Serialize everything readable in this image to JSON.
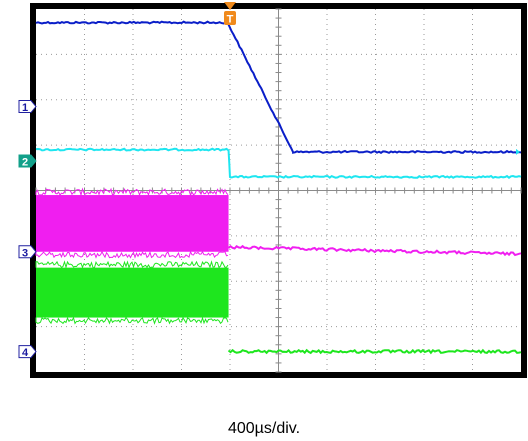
{
  "chart_data": {
    "type": "line",
    "title": "",
    "xlabel": "400µs/div.",
    "x_scale_us_per_div": 400,
    "divisions": {
      "x": 10,
      "y": 8
    },
    "x_range_div": [
      0,
      10
    ],
    "y_range_div": [
      0,
      8
    ],
    "grid": true,
    "trigger": {
      "label": "T",
      "position_div": 4.0,
      "color": "#f08a1c"
    },
    "series": [
      {
        "marker": "1",
        "color": "#0a1ec8",
        "marker_level_div": 5.85,
        "points_div": [
          [
            0,
            7.7
          ],
          [
            3.95,
            7.7
          ],
          [
            5.3,
            4.85
          ],
          [
            10,
            4.85
          ]
        ],
        "noise": "low"
      },
      {
        "marker": "2",
        "color": "#1ee6f0",
        "marker_level_div": 4.65,
        "points_div": [
          [
            0,
            4.9
          ],
          [
            3.97,
            4.9
          ],
          [
            4.0,
            4.3
          ],
          [
            10,
            4.3
          ]
        ],
        "noise": "low"
      },
      {
        "marker": "3",
        "color": "#f01ef0",
        "marker_level_div": 2.65,
        "envelope_div": {
          "x_end": 3.97,
          "lower": 2.65,
          "upper": 3.9
        },
        "points_div": [
          [
            3.97,
            2.75
          ],
          [
            10,
            2.6
          ]
        ],
        "noise": "high"
      },
      {
        "marker": "4",
        "color": "#1ee61e",
        "marker_level_div": 0.45,
        "envelope_div": {
          "x_end": 3.97,
          "lower": 1.2,
          "upper": 2.3
        },
        "points_div": [
          [
            3.97,
            0.45
          ],
          [
            10,
            0.45
          ]
        ],
        "noise": "high"
      }
    ]
  }
}
